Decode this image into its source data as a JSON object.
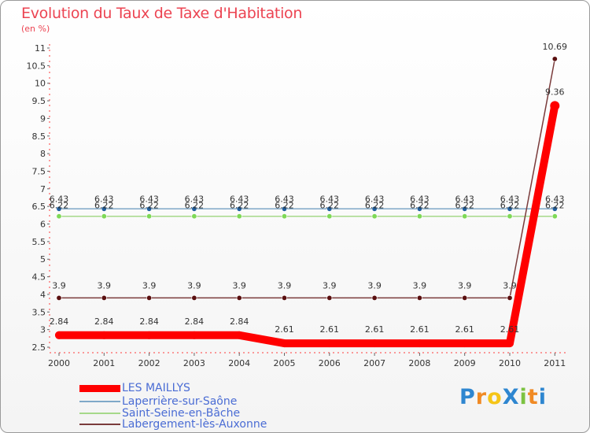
{
  "chart_data": {
    "type": "line",
    "title": "Evolution du Taux de Taxe d'Habitation",
    "subtitle": "(en %)",
    "categories": [
      "2000",
      "2001",
      "2002",
      "2003",
      "2004",
      "2005",
      "2006",
      "2007",
      "2008",
      "2009",
      "2010",
      "2011"
    ],
    "y_ticks": [
      "2.5",
      "3",
      "3.5",
      "4",
      "4.5",
      "5",
      "5.5",
      "6",
      "6.5",
      "7",
      "7.5",
      "8",
      "8.5",
      "9",
      "9.5",
      "10",
      "10.5",
      "11"
    ],
    "ylim": [
      2.5,
      11
    ],
    "grid": false,
    "legend_position": "bottom-left",
    "series": [
      {
        "name": "LES MAILLYS",
        "color": "#ff0000",
        "values": [
          2.84,
          2.84,
          2.84,
          2.84,
          2.84,
          2.61,
          2.61,
          2.61,
          2.61,
          2.61,
          2.61,
          9.36
        ],
        "labels": [
          "2.84",
          "2.84",
          "2.84",
          "2.84",
          "2.84",
          "2.61",
          "2.61",
          "2.61",
          "2.61",
          "2.61",
          "2.61",
          "9.36"
        ]
      },
      {
        "name": "Laperrière-sur-Saône",
        "color": "#7fa8c8",
        "marker": "#1f5fa0",
        "values": [
          6.43,
          6.43,
          6.43,
          6.43,
          6.43,
          6.43,
          6.43,
          6.43,
          6.43,
          6.43,
          6.43,
          6.43
        ],
        "labels": [
          "6.43",
          "6.43",
          "6.43",
          "6.43",
          "6.43",
          "6.43",
          "6.43",
          "6.43",
          "6.43",
          "6.43",
          "6.43",
          "6.43"
        ]
      },
      {
        "name": "Saint-Seine-en-Bâche",
        "color": "#a6d98a",
        "marker": "#7ed957",
        "values": [
          6.22,
          6.22,
          6.22,
          6.22,
          6.22,
          6.22,
          6.22,
          6.22,
          6.22,
          6.22,
          6.22,
          6.22
        ],
        "labels": [
          "6.22",
          "6.22",
          "6.22",
          "6.22",
          "6.22",
          "6.22",
          "6.22",
          "6.22",
          "6.22",
          "6.22",
          "6.22",
          "6.22"
        ]
      },
      {
        "name": "Labergement-lès-Auxonne",
        "color": "#7a3b3b",
        "marker": "#5a1010",
        "values": [
          3.9,
          3.9,
          3.9,
          3.9,
          3.9,
          3.9,
          3.9,
          3.9,
          3.9,
          3.9,
          3.9,
          10.69
        ],
        "labels": [
          "3.9",
          "3.9",
          "3.9",
          "3.9",
          "3.9",
          "3.9",
          "3.9",
          "3.9",
          "3.9",
          "3.9",
          "3.9",
          "10.69"
        ]
      }
    ]
  },
  "logo": {
    "text": "ProXiti",
    "letters": [
      {
        "ch": "P",
        "color": "#2e86d0"
      },
      {
        "ch": "r",
        "color": "#f08a24"
      },
      {
        "ch": "o",
        "color": "#f5c518"
      },
      {
        "ch": "X",
        "color": "#2e86d0"
      },
      {
        "ch": "i",
        "color": "#7cc242"
      },
      {
        "ch": "t",
        "color": "#f08a24"
      },
      {
        "ch": "i",
        "color": "#2e86d0"
      }
    ]
  }
}
